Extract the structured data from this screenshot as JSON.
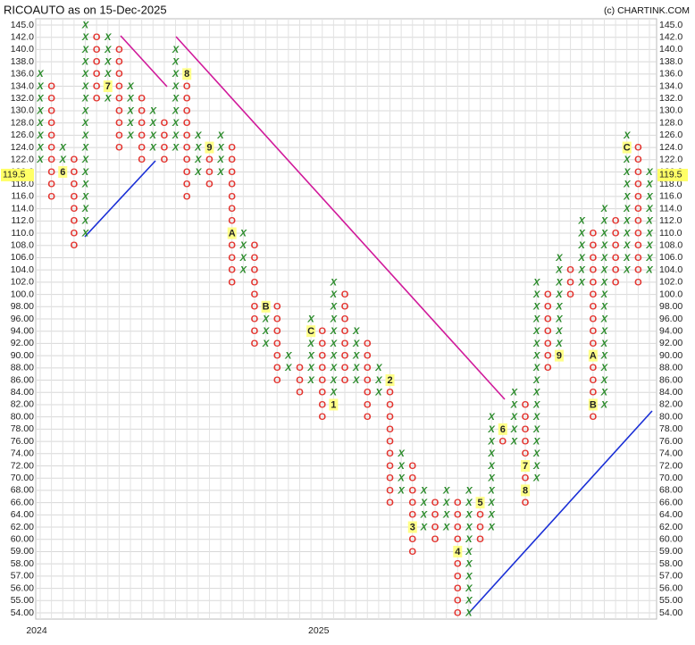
{
  "chart_data": {
    "type": "pnf",
    "title": "RICOAUTO as on 15-Dec-2025",
    "credit": "(c) CHARTINK.COM",
    "last_price": 119.5,
    "colors": {
      "X": "#2a8a2a",
      "O": "#e3342f",
      "marker": "#ffff88",
      "last_price": "#ffff66"
    },
    "grid": true,
    "levels": [
      {
        "value": 145,
        "label": "145.0"
      },
      {
        "value": 142,
        "label": "142.0"
      },
      {
        "value": 140,
        "label": "140.0"
      },
      {
        "value": 138,
        "label": "138.0"
      },
      {
        "value": 136,
        "label": "136.0"
      },
      {
        "value": 134,
        "label": "134.0"
      },
      {
        "value": 132,
        "label": "132.0"
      },
      {
        "value": 130,
        "label": "130.0"
      },
      {
        "value": 128,
        "label": "128.0"
      },
      {
        "value": 126,
        "label": "126.0"
      },
      {
        "value": 124,
        "label": "124.0"
      },
      {
        "value": 122,
        "label": "122.0"
      },
      {
        "value": 120,
        "label": "120.0"
      },
      {
        "value": 118,
        "label": "118.0"
      },
      {
        "value": 116,
        "label": "116.0"
      },
      {
        "value": 114,
        "label": "114.0"
      },
      {
        "value": 112,
        "label": "112.0"
      },
      {
        "value": 110,
        "label": "110.0"
      },
      {
        "value": 108,
        "label": "108.0"
      },
      {
        "value": 106,
        "label": "106.0"
      },
      {
        "value": 104,
        "label": "104.0"
      },
      {
        "value": 102,
        "label": "102.0"
      },
      {
        "value": 100,
        "label": "100.0"
      },
      {
        "value": 98,
        "label": "98.00"
      },
      {
        "value": 96,
        "label": "96.00"
      },
      {
        "value": 94,
        "label": "94.00"
      },
      {
        "value": 92,
        "label": "92.00"
      },
      {
        "value": 90,
        "label": "90.00"
      },
      {
        "value": 88,
        "label": "88.00"
      },
      {
        "value": 86,
        "label": "86.00"
      },
      {
        "value": 84,
        "label": "84.00"
      },
      {
        "value": 82,
        "label": "82.00"
      },
      {
        "value": 80,
        "label": "80.00"
      },
      {
        "value": 78,
        "label": "78.00"
      },
      {
        "value": 76,
        "label": "76.00"
      },
      {
        "value": 74,
        "label": "74.00"
      },
      {
        "value": 72,
        "label": "72.00"
      },
      {
        "value": 70,
        "label": "70.00"
      },
      {
        "value": 68,
        "label": "68.00"
      },
      {
        "value": 66,
        "label": "66.00"
      },
      {
        "value": 64,
        "label": "64.00"
      },
      {
        "value": 62,
        "label": "62.00"
      },
      {
        "value": 60,
        "label": "60.00"
      },
      {
        "value": 59,
        "label": "59.00"
      },
      {
        "value": 58,
        "label": "58.00"
      },
      {
        "value": 57,
        "label": "57.00"
      },
      {
        "value": 56,
        "label": "56.00"
      },
      {
        "value": 55,
        "label": "55.00"
      },
      {
        "value": 54,
        "label": "54.00"
      }
    ],
    "columns": [
      {
        "kind": "X",
        "high": 136,
        "low": 122,
        "year": "2024"
      },
      {
        "kind": "O",
        "high": 134,
        "low": 116
      },
      {
        "kind": "X",
        "high": 124,
        "low": 120,
        "marks": [
          {
            "value": 120,
            "label": "6"
          }
        ]
      },
      {
        "kind": "O",
        "high": 122,
        "low": 108
      },
      {
        "kind": "X",
        "high": 145,
        "low": 110
      },
      {
        "kind": "O",
        "high": 142,
        "low": 132
      },
      {
        "kind": "X",
        "high": 142,
        "low": 132,
        "marks": [
          {
            "value": 134,
            "label": "7"
          }
        ]
      },
      {
        "kind": "O",
        "high": 140,
        "low": 124
      },
      {
        "kind": "X",
        "high": 134,
        "low": 126
      },
      {
        "kind": "O",
        "high": 132,
        "low": 122
      },
      {
        "kind": "X",
        "high": 130,
        "low": 124
      },
      {
        "kind": "O",
        "high": 128,
        "low": 122
      },
      {
        "kind": "X",
        "high": 140,
        "low": 124
      },
      {
        "kind": "O",
        "high": 136,
        "low": 116,
        "marks": [
          {
            "value": 136,
            "label": "8"
          }
        ]
      },
      {
        "kind": "X",
        "high": 126,
        "low": 120
      },
      {
        "kind": "O",
        "high": 124,
        "low": 118,
        "marks": [
          {
            "value": 124,
            "label": "9"
          }
        ]
      },
      {
        "kind": "X",
        "high": 126,
        "low": 120
      },
      {
        "kind": "O",
        "high": 124,
        "low": 102,
        "marks": [
          {
            "value": 110,
            "label": "A"
          }
        ]
      },
      {
        "kind": "X",
        "high": 110,
        "low": 104
      },
      {
        "kind": "O",
        "high": 108,
        "low": 92
      },
      {
        "kind": "X",
        "high": 98,
        "low": 92,
        "marks": [
          {
            "value": 98,
            "label": "B"
          }
        ]
      },
      {
        "kind": "O",
        "high": 98,
        "low": 86
      },
      {
        "kind": "X",
        "high": 90,
        "low": 88
      },
      {
        "kind": "O",
        "high": 88,
        "low": 84
      },
      {
        "kind": "X",
        "high": 96,
        "low": 86,
        "marks": [
          {
            "value": 94,
            "label": "C"
          }
        ]
      },
      {
        "kind": "O",
        "high": 94,
        "low": 80,
        "year": "2025"
      },
      {
        "kind": "X",
        "high": 102,
        "low": 82,
        "marks": [
          {
            "value": 82,
            "label": "1"
          }
        ]
      },
      {
        "kind": "O",
        "high": 100,
        "low": 86
      },
      {
        "kind": "X",
        "high": 94,
        "low": 86
      },
      {
        "kind": "O",
        "high": 92,
        "low": 80
      },
      {
        "kind": "X",
        "high": 88,
        "low": 84
      },
      {
        "kind": "O",
        "high": 86,
        "low": 66,
        "marks": [
          {
            "value": 86,
            "label": "2"
          }
        ]
      },
      {
        "kind": "X",
        "high": 74,
        "low": 68
      },
      {
        "kind": "O",
        "high": 72,
        "low": 59,
        "marks": [
          {
            "value": 62,
            "label": "3"
          }
        ]
      },
      {
        "kind": "X",
        "high": 68,
        "low": 62
      },
      {
        "kind": "O",
        "high": 66,
        "low": 60
      },
      {
        "kind": "X",
        "high": 68,
        "low": 62
      },
      {
        "kind": "O",
        "high": 66,
        "low": 54,
        "marks": [
          {
            "value": 59,
            "label": "4"
          }
        ]
      },
      {
        "kind": "X",
        "high": 68,
        "low": 54
      },
      {
        "kind": "O",
        "high": 66,
        "low": 60,
        "marks": [
          {
            "value": 66,
            "label": "5"
          }
        ]
      },
      {
        "kind": "X",
        "high": 80,
        "low": 62
      },
      {
        "kind": "O",
        "high": 78,
        "low": 76,
        "marks": [
          {
            "value": 78,
            "label": "6"
          }
        ]
      },
      {
        "kind": "X",
        "high": 84,
        "low": 76
      },
      {
        "kind": "O",
        "high": 82,
        "low": 66,
        "marks": [
          {
            "value": 72,
            "label": "7"
          },
          {
            "value": 68,
            "label": "8"
          }
        ]
      },
      {
        "kind": "X",
        "high": 102,
        "low": 70
      },
      {
        "kind": "O",
        "high": 100,
        "low": 88
      },
      {
        "kind": "X",
        "high": 106,
        "low": 90,
        "marks": [
          {
            "value": 90,
            "label": "9"
          }
        ]
      },
      {
        "kind": "O",
        "high": 104,
        "low": 100
      },
      {
        "kind": "X",
        "high": 112,
        "low": 102
      },
      {
        "kind": "O",
        "high": 110,
        "low": 80,
        "marks": [
          {
            "value": 90,
            "label": "A"
          },
          {
            "value": 82,
            "label": "B"
          }
        ]
      },
      {
        "kind": "X",
        "high": 114,
        "low": 82
      },
      {
        "kind": "O",
        "high": 112,
        "low": 102
      },
      {
        "kind": "X",
        "high": 126,
        "low": 104,
        "marks": [
          {
            "value": 124,
            "label": "C"
          }
        ]
      },
      {
        "kind": "O",
        "high": 124,
        "low": 102
      },
      {
        "kind": "X",
        "high": 120,
        "low": 104
      }
    ]
  }
}
